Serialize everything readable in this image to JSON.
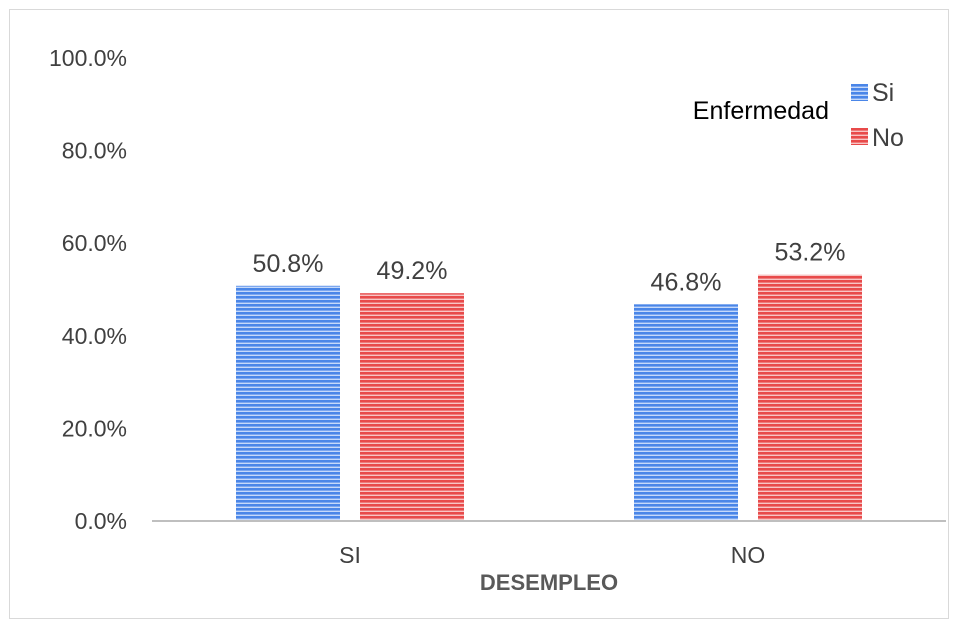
{
  "chart_data": {
    "type": "bar",
    "categories": [
      "SI",
      "NO"
    ],
    "series": [
      {
        "name": "Si",
        "values": [
          50.8,
          46.8
        ],
        "labels": [
          "50.8%",
          "46.8%"
        ],
        "color": "#4a86e8"
      },
      {
        "name": "No",
        "values": [
          49.2,
          53.2
        ],
        "labels": [
          "49.2%",
          "53.2%"
        ],
        "color": "#e84a4a"
      }
    ],
    "xlabel": "DESEMPLEO",
    "ylabel": "",
    "ylim": [
      0,
      100
    ],
    "yticks": [
      "0.0%",
      "20.0%",
      "40.0%",
      "60.0%",
      "80.0%",
      "100.0%"
    ],
    "legend": {
      "title": "Enfermedad",
      "placement": "top-right"
    },
    "grid": false
  }
}
